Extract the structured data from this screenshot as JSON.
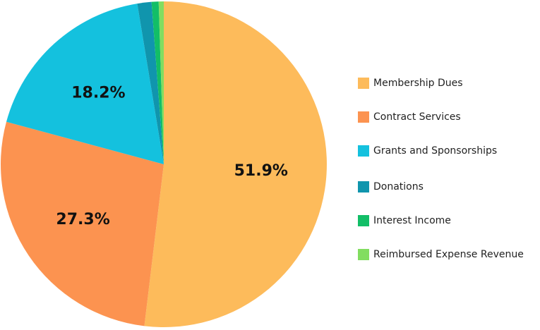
{
  "chart_data": {
    "type": "pie",
    "categories": [
      "Membership Dues",
      "Contract Services",
      "Grants and Sponsorships",
      "Donations",
      "Interest Income",
      "Reimbursed Expense Revenue"
    ],
    "values": [
      51.9,
      27.3,
      18.2,
      1.4,
      0.7,
      0.5
    ],
    "value_labels": [
      "51.9%",
      "27.3%",
      "18.2%",
      "",
      "",
      ""
    ],
    "colors": [
      "#FDBB5B",
      "#FC9350",
      "#14C1DE",
      "#1095AD",
      "#12BE67",
      "#82DD60"
    ],
    "legend_position": "right",
    "start_angle_deg": 0,
    "direction": "clockwise"
  }
}
